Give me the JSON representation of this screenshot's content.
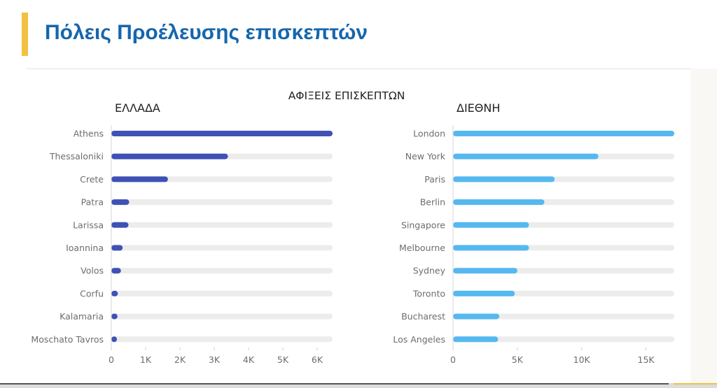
{
  "page": {
    "title": "Πόλεις Προέλευσης επισκεπτών"
  },
  "colors": {
    "accent": "#f2c141",
    "title": "#1566ad",
    "greek_bars": "#3f51b5",
    "intl_bars": "#56b8f0",
    "track": "#ececec"
  },
  "chart_data": [
    {
      "type": "bar",
      "orientation": "horizontal",
      "title": "ΕΛΛΑΔΑ",
      "supertitle": "ΑΦΙΞΕΙΣ ΕΠΙΣΚΕΠΤΩΝ",
      "categories": [
        "Athens",
        "Thessaloniki",
        "Crete",
        "Patra",
        "Larissa",
        "Ioannina",
        "Volos",
        "Corfu",
        "Kalamaria",
        "Moschato Tavros"
      ],
      "values": [
        6450,
        3400,
        1650,
        520,
        500,
        330,
        280,
        190,
        180,
        150
      ],
      "xlim": [
        0,
        6450
      ],
      "xticks": [
        0,
        1000,
        2000,
        3000,
        4000,
        5000,
        6000
      ],
      "xtick_labels": [
        "0",
        "1K",
        "2K",
        "3K",
        "4K",
        "5K",
        "6K"
      ],
      "grid": false
    },
    {
      "type": "bar",
      "orientation": "horizontal",
      "title": "ΔΙΕΘΝΗ",
      "categories": [
        "London",
        "New York",
        "Paris",
        "Berlin",
        "Singapore",
        "Melbourne",
        "Sydney",
        "Toronto",
        "Bucharest",
        "Los Angeles"
      ],
      "values": [
        17200,
        11300,
        7900,
        7100,
        5900,
        5900,
        5000,
        4800,
        3600,
        3500
      ],
      "xlim": [
        0,
        17200
      ],
      "xticks": [
        0,
        5000,
        10000,
        15000
      ],
      "xtick_labels": [
        "0",
        "5K",
        "10K",
        "15K"
      ],
      "grid": false
    }
  ]
}
